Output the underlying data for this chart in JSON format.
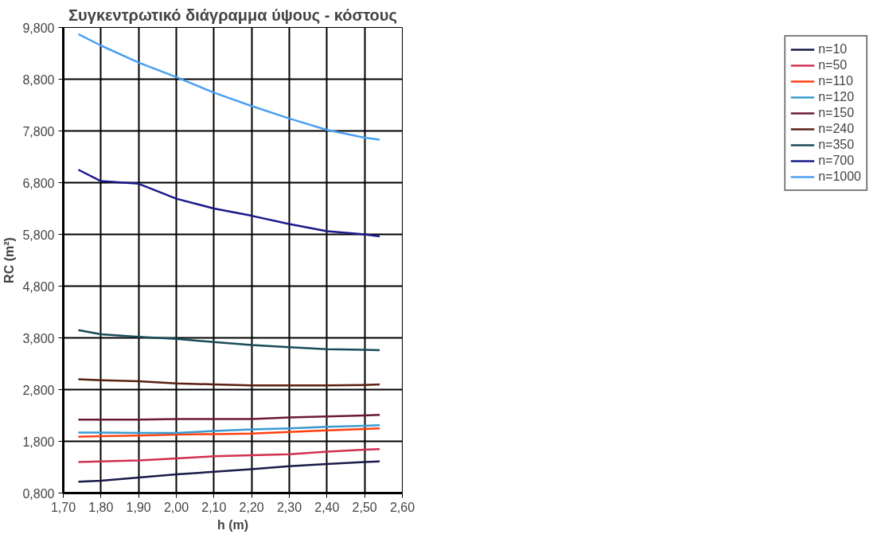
{
  "chart_data": {
    "type": "line",
    "title": "Συγκεντρωτικό διάγραμμα ύψους - κόστους",
    "xlabel": "h (m)",
    "ylabel": "RC (m²)",
    "x": [
      1.74,
      1.8,
      1.9,
      2.0,
      2.1,
      2.2,
      2.3,
      2.4,
      2.5,
      2.54
    ],
    "series": [
      {
        "name": "n=10",
        "color": "#1a1a4a",
        "values": [
          1.02,
          1.04,
          1.1,
          1.16,
          1.21,
          1.26,
          1.32,
          1.36,
          1.4,
          1.41
        ]
      },
      {
        "name": "n=50",
        "color": "#d03050",
        "values": [
          1.4,
          1.41,
          1.43,
          1.47,
          1.51,
          1.53,
          1.55,
          1.6,
          1.64,
          1.65
        ]
      },
      {
        "name": "n=110",
        "color": "#ff4010",
        "values": [
          1.89,
          1.9,
          1.91,
          1.93,
          1.94,
          1.95,
          1.98,
          2.01,
          2.04,
          2.05
        ]
      },
      {
        "name": "n=120",
        "color": "#3a9ad0",
        "values": [
          1.97,
          1.97,
          1.96,
          1.96,
          2.0,
          2.03,
          2.05,
          2.08,
          2.1,
          2.11
        ]
      },
      {
        "name": "n=150",
        "color": "#6a1a30",
        "values": [
          2.22,
          2.22,
          2.22,
          2.23,
          2.23,
          2.23,
          2.26,
          2.28,
          2.3,
          2.31
        ]
      },
      {
        "name": "n=240",
        "color": "#5a2010",
        "values": [
          3.0,
          2.98,
          2.96,
          2.92,
          2.9,
          2.88,
          2.88,
          2.88,
          2.89,
          2.9
        ]
      },
      {
        "name": "n=350",
        "color": "#1a4a5a",
        "values": [
          3.95,
          3.87,
          3.82,
          3.78,
          3.72,
          3.66,
          3.62,
          3.58,
          3.57,
          3.56
        ]
      },
      {
        "name": "n=700",
        "color": "#1a1a8a",
        "values": [
          7.05,
          6.83,
          6.78,
          6.49,
          6.3,
          6.16,
          6.0,
          5.86,
          5.8,
          5.76
        ]
      },
      {
        "name": "n=1000",
        "color": "#4aa0f0",
        "values": [
          9.67,
          9.45,
          9.12,
          8.84,
          8.54,
          8.28,
          8.04,
          7.82,
          7.67,
          7.63
        ]
      }
    ],
    "xlim": [
      1.7,
      2.6
    ],
    "xticks": [
      {
        "value": 1.7,
        "label": "1,70"
      },
      {
        "value": 1.8,
        "label": "1,80"
      },
      {
        "value": 1.9,
        "label": "1,90"
      },
      {
        "value": 2.0,
        "label": "2,00"
      },
      {
        "value": 2.1,
        "label": "2,10"
      },
      {
        "value": 2.2,
        "label": "2,20"
      },
      {
        "value": 2.3,
        "label": "2,30"
      },
      {
        "value": 2.4,
        "label": "2,40"
      },
      {
        "value": 2.5,
        "label": "2,50"
      },
      {
        "value": 2.6,
        "label": "2,60"
      }
    ],
    "ylim": [
      0.8,
      9.8
    ],
    "yticks": [
      {
        "value": 0.8,
        "label": "0,800"
      },
      {
        "value": 1.8,
        "label": "1,800"
      },
      {
        "value": 2.8,
        "label": "2,800"
      },
      {
        "value": 3.8,
        "label": "3,800"
      },
      {
        "value": 4.8,
        "label": "4,800"
      },
      {
        "value": 5.8,
        "label": "5,800"
      },
      {
        "value": 6.8,
        "label": "6,800"
      },
      {
        "value": 7.8,
        "label": "7,800"
      },
      {
        "value": 8.8,
        "label": "8,800"
      },
      {
        "value": 9.8,
        "label": "9,800"
      }
    ],
    "grid": true,
    "legend": "right",
    "marker": "none",
    "line_style": "solid"
  }
}
